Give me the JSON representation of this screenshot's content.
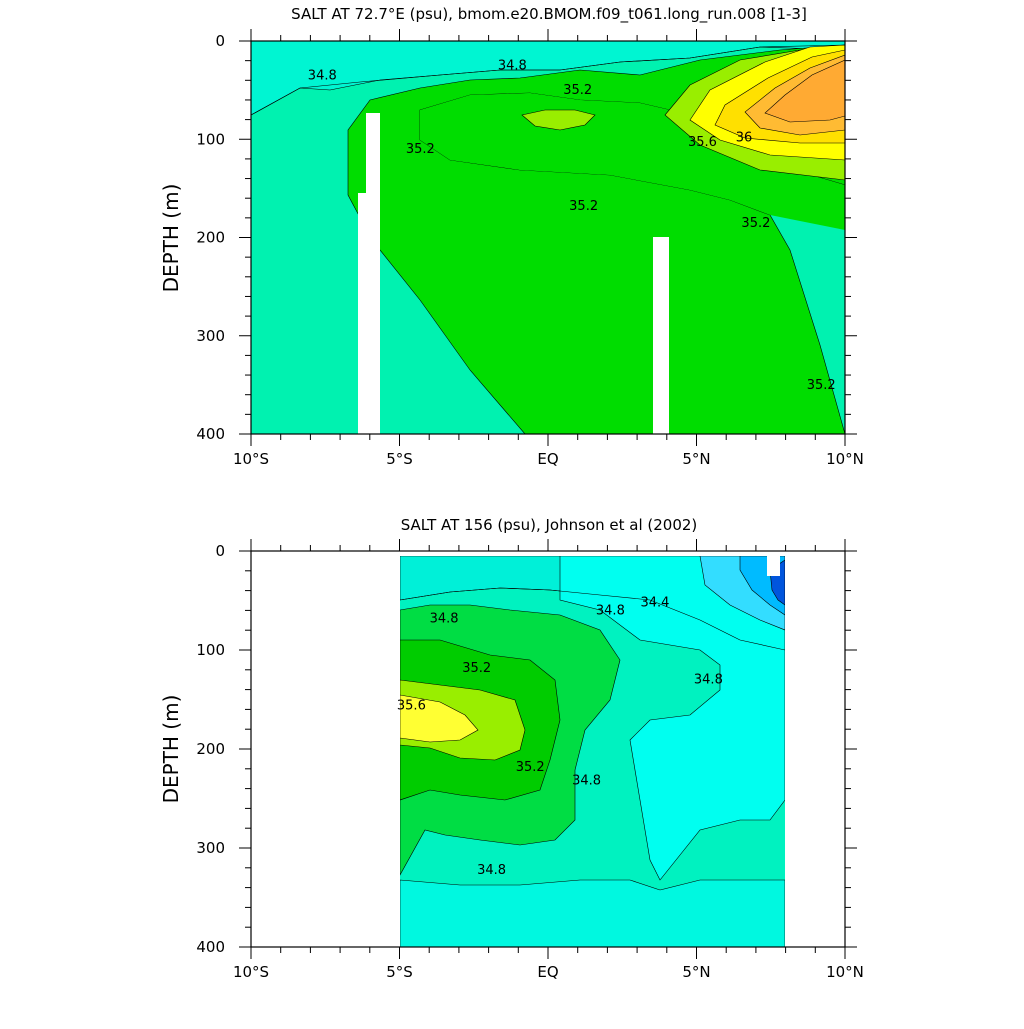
{
  "chart_data": [
    {
      "type": "contour",
      "title": "SALT AT  72.7°E (psu), bmom.e20.BMOM.f09_t061.long_run.008 [1-3]",
      "ylabel": "DEPTH (m)",
      "xlabel": "",
      "xlim": [
        -10,
        10
      ],
      "ylim": [
        0,
        400
      ],
      "y_reversed": true,
      "x_ticks": [
        -10,
        -5,
        0,
        5,
        10
      ],
      "x_tick_labels": [
        "10°S",
        "5°S",
        "EQ",
        "5°N",
        "10°N"
      ],
      "y_ticks": [
        0,
        100,
        200,
        300,
        400
      ],
      "y_tick_labels": [
        "0",
        "100",
        "200",
        "300",
        "400"
      ],
      "data_extent_x": [
        -10,
        10
      ],
      "contour_levels": [
        34.8,
        35.2,
        35.6,
        36
      ],
      "contour_labels": [
        {
          "text": "34.8",
          "x": -7.6,
          "y": 35
        },
        {
          "text": "34.8",
          "x": -1.2,
          "y": 25
        },
        {
          "text": "35.2",
          "x": 1.0,
          "y": 50
        },
        {
          "text": "35.2",
          "x": -4.3,
          "y": 110
        },
        {
          "text": "35.2",
          "x": 1.2,
          "y": 168
        },
        {
          "text": "35.6",
          "x": 5.2,
          "y": 103
        },
        {
          "text": "36",
          "x": 6.6,
          "y": 98
        },
        {
          "text": "35.2",
          "x": 7.0,
          "y": 185
        },
        {
          "text": "35.2",
          "x": 9.2,
          "y": 350
        }
      ],
      "missing_columns": [
        {
          "x": [
            -6.3,
            -5.6
          ],
          "depth": [
            75,
            400
          ]
        },
        {
          "x": [
            -6.5,
            -6.3
          ],
          "depth": [
            158,
            400
          ]
        },
        {
          "x": [
            3.6,
            4.1
          ],
          "depth": [
            200,
            400
          ]
        }
      ]
    },
    {
      "type": "contour",
      "title": "SALT AT 156 (psu), Johnson et al (2002)",
      "ylabel": "DEPTH (m)",
      "xlabel": "",
      "xlim": [
        -10,
        10
      ],
      "ylim": [
        0,
        400
      ],
      "y_reversed": true,
      "x_ticks": [
        -10,
        -5,
        0,
        5,
        10
      ],
      "x_tick_labels": [
        "10°S",
        "5°S",
        "EQ",
        "5°N",
        "10°N"
      ],
      "y_ticks": [
        0,
        100,
        200,
        300,
        400
      ],
      "y_tick_labels": [
        "0",
        "100",
        "200",
        "300",
        "400"
      ],
      "data_extent_x": [
        -5,
        8
      ],
      "contour_levels": [
        34.4,
        34.8,
        35.2,
        35.6
      ],
      "contour_labels": [
        {
          "text": "34.8",
          "x": -3.5,
          "y": 68
        },
        {
          "text": "34.8",
          "x": 2.1,
          "y": 60
        },
        {
          "text": "34.4",
          "x": 3.6,
          "y": 52
        },
        {
          "text": "34.8",
          "x": 5.4,
          "y": 130
        },
        {
          "text": "35.2",
          "x": -2.4,
          "y": 118
        },
        {
          "text": "35.6",
          "x": -4.6,
          "y": 156
        },
        {
          "text": "35.2",
          "x": -0.6,
          "y": 218
        },
        {
          "text": "34.8",
          "x": 1.3,
          "y": 232
        },
        {
          "text": "34.8",
          "x": -1.9,
          "y": 322
        }
      ]
    }
  ]
}
